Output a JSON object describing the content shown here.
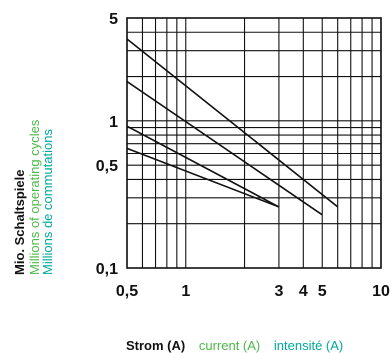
{
  "chart_data": {
    "type": "line",
    "x_scale": "log",
    "y_scale": "log",
    "xlim": [
      0.5,
      10
    ],
    "ylim": [
      0.1,
      5
    ],
    "grid": true,
    "x_grid_values": [
      0.5,
      0.6,
      0.7,
      0.8,
      0.9,
      1,
      2,
      3,
      4,
      5,
      6,
      7,
      8,
      9,
      10
    ],
    "y_grid_values": [
      0.1,
      0.2,
      0.3,
      0.4,
      0.5,
      0.6,
      0.7,
      0.8,
      0.9,
      1,
      2,
      3,
      4,
      5
    ],
    "x_ticks": [
      {
        "value": 0.5,
        "label": "0,5"
      },
      {
        "value": 1,
        "label": "1"
      },
      {
        "value": 3,
        "label": "3"
      },
      {
        "value": 4,
        "label": "4"
      },
      {
        "value": 5,
        "label": "5"
      },
      {
        "value": 10,
        "label": "10"
      }
    ],
    "y_ticks": [
      {
        "value": 0.1,
        "label": "0,1"
      },
      {
        "value": 0.5,
        "label": "0,5"
      },
      {
        "value": 1,
        "label": "1"
      },
      {
        "value": 5,
        "label": "5"
      }
    ],
    "series": [
      {
        "x": [
          0.5,
          6
        ],
        "y": [
          3.6,
          0.26
        ]
      },
      {
        "x": [
          0.5,
          5
        ],
        "y": [
          1.85,
          0.23
        ]
      },
      {
        "x": [
          0.5,
          3
        ],
        "y": [
          0.92,
          0.26
        ]
      },
      {
        "x": [
          0.5,
          3
        ],
        "y": [
          0.65,
          0.26
        ]
      }
    ],
    "ylabel": {
      "de": "Mio. Schaltspiele",
      "en": "Millions of operating cycles",
      "fr": "Millions de commutations"
    },
    "xlabel": {
      "de": "Strom (A)",
      "en": "current (A)",
      "fr": "intensité (A)"
    },
    "colors": {
      "de": "#111111",
      "en": "#4cb848",
      "fr": "#00a99d",
      "lines": "#111111",
      "grid": "#111111"
    }
  }
}
